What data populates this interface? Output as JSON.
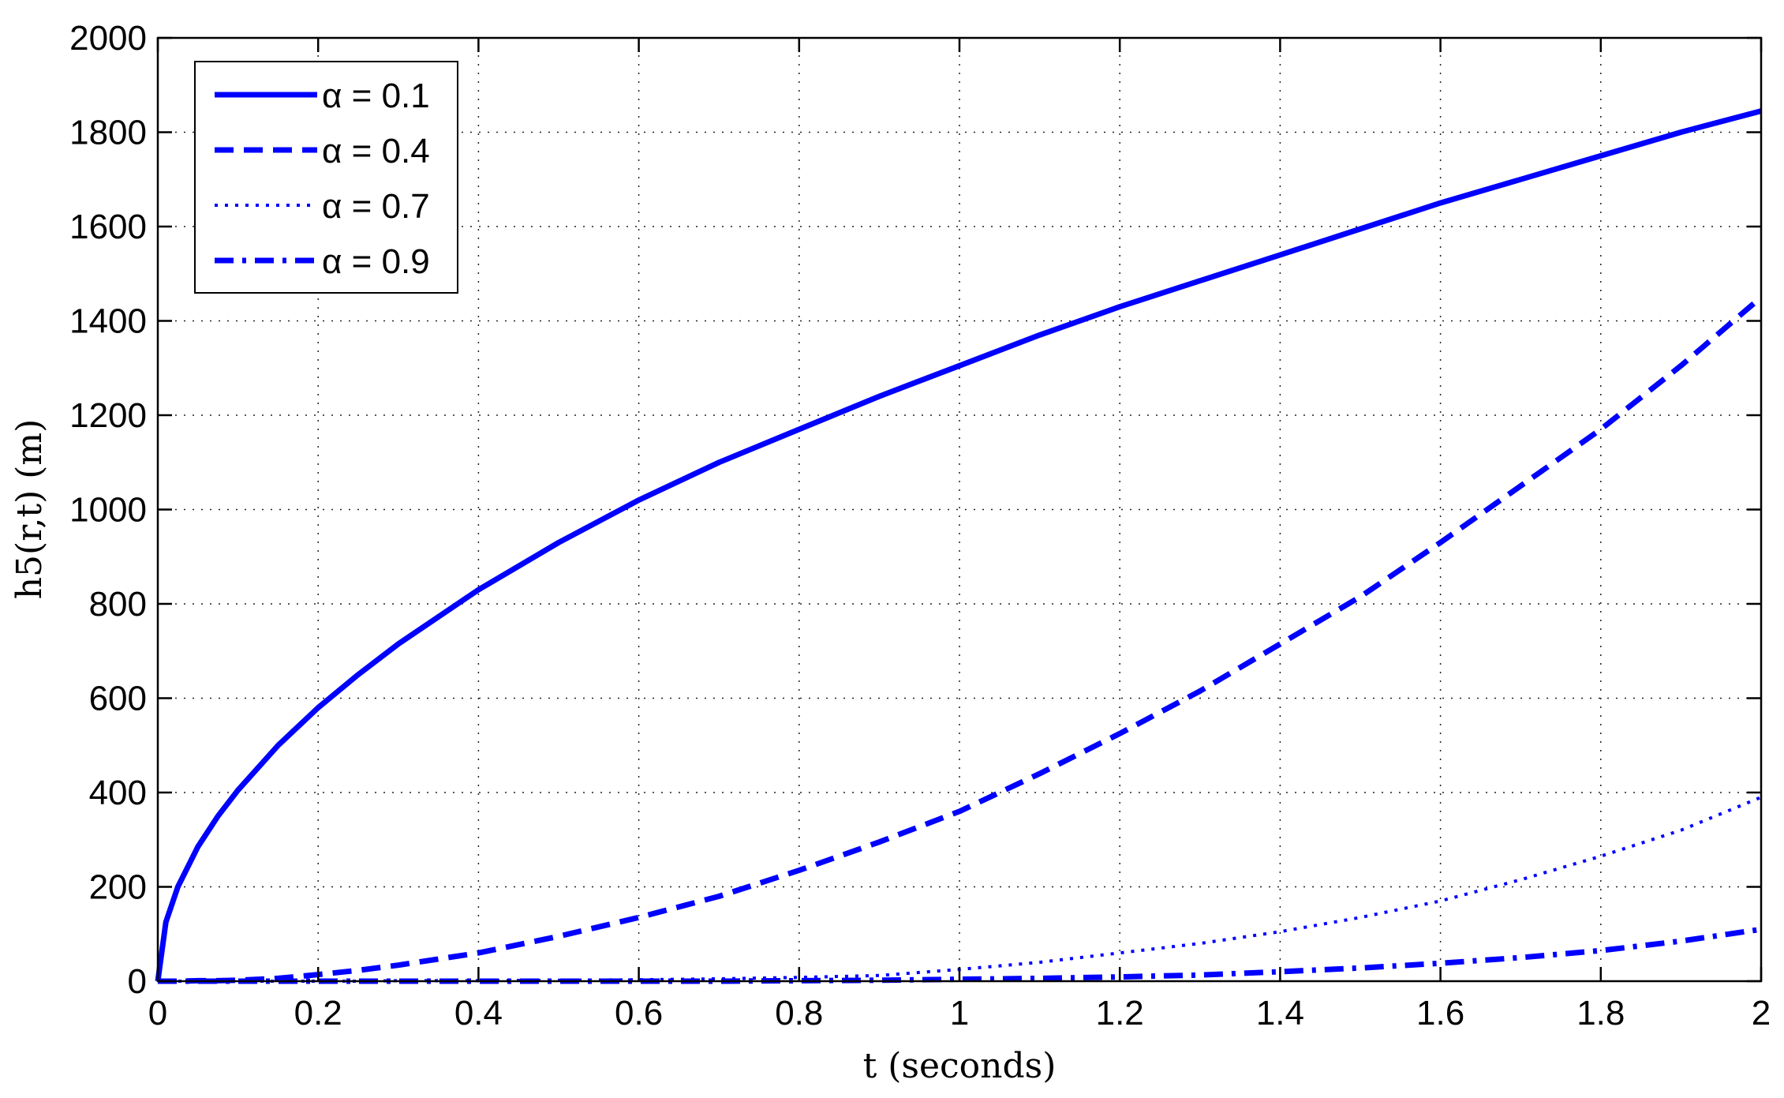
{
  "chart_data": {
    "type": "line",
    "title": "",
    "xlabel": "t (seconds)",
    "ylabel": "h5(r,t) (m)",
    "xlim": [
      0,
      2
    ],
    "ylim": [
      0,
      2000
    ],
    "xticks": [
      0,
      0.2,
      0.4,
      0.6,
      0.8,
      1,
      1.2,
      1.4,
      1.6,
      1.8,
      2
    ],
    "xtick_labels": [
      "0",
      "0.2",
      "0.4",
      "0.6",
      "0.8",
      "1",
      "1.2",
      "1.4",
      "1.6",
      "1.8",
      "2"
    ],
    "yticks": [
      0,
      200,
      400,
      600,
      800,
      1000,
      1200,
      1400,
      1600,
      1800,
      2000
    ],
    "ytick_labels": [
      "0",
      "200",
      "400",
      "600",
      "800",
      "1000",
      "1200",
      "1400",
      "1600",
      "1800",
      "2000"
    ],
    "grid": true,
    "legend_position": "top-left",
    "color": "#0000ff",
    "x": [
      0,
      0.01,
      0.025,
      0.05,
      0.075,
      0.1,
      0.15,
      0.2,
      0.25,
      0.3,
      0.4,
      0.5,
      0.6,
      0.7,
      0.8,
      0.9,
      1.0,
      1.1,
      1.2,
      1.3,
      1.4,
      1.5,
      1.6,
      1.7,
      1.8,
      1.9,
      2.0
    ],
    "series": [
      {
        "name": "α = 0.1",
        "style": "solid",
        "values": [
          0,
          125,
          200,
          285,
          350,
          405,
          500,
          580,
          650,
          715,
          830,
          930,
          1020,
          1100,
          1170,
          1240,
          1305,
          1370,
          1430,
          1485,
          1540,
          1595,
          1650,
          1700,
          1750,
          1800,
          1845
        ]
      },
      {
        "name": "α = 0.4",
        "style": "dashed",
        "values": [
          0,
          0,
          0,
          1,
          1,
          2,
          6,
          14,
          23,
          34,
          60,
          95,
          135,
          180,
          235,
          295,
          360,
          440,
          525,
          615,
          715,
          815,
          930,
          1050,
          1170,
          1305,
          1450
        ]
      },
      {
        "name": "α = 0.7",
        "style": "dotted",
        "values": [
          0,
          0,
          0,
          0,
          0,
          0,
          0,
          0,
          0,
          1,
          1,
          2,
          3,
          5,
          8,
          12,
          25,
          40,
          60,
          80,
          105,
          135,
          170,
          215,
          265,
          320,
          390
        ]
      },
      {
        "name": "α = 0.9",
        "style": "dashdot",
        "values": [
          0,
          0,
          0,
          0,
          0,
          0,
          0,
          0,
          0,
          0,
          0,
          0,
          0,
          0,
          1,
          2,
          4,
          6,
          9,
          13,
          20,
          28,
          38,
          50,
          65,
          85,
          110
        ]
      }
    ]
  }
}
